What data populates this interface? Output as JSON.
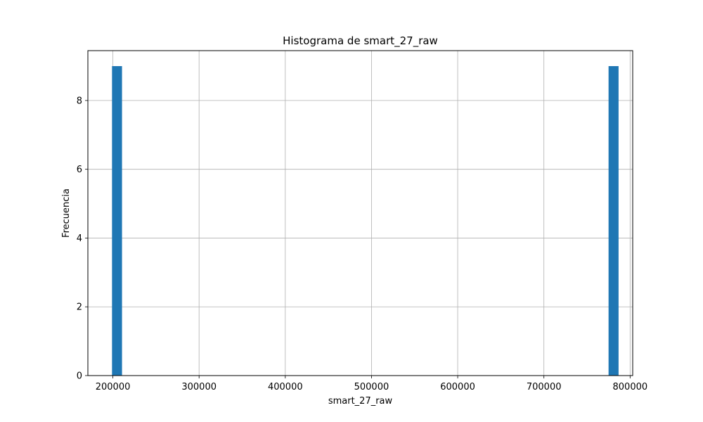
{
  "chart_data": {
    "type": "bar",
    "title": "Histograma de smart_27_raw",
    "xlabel": "smart_27_raw",
    "ylabel": "Frecuencia",
    "xlim": [
      171000,
      803000
    ],
    "ylim": [
      0,
      9.45
    ],
    "xticks": [
      200000,
      300000,
      400000,
      500000,
      600000,
      700000,
      800000
    ],
    "yticks": [
      0,
      2,
      4,
      6,
      8
    ],
    "grid": true,
    "bar_color": "#1f77b4",
    "bins": [
      {
        "x0": 199000,
        "x1": 210600,
        "count": 9
      },
      {
        "x0": 775000,
        "x1": 786600,
        "count": 9
      }
    ]
  }
}
